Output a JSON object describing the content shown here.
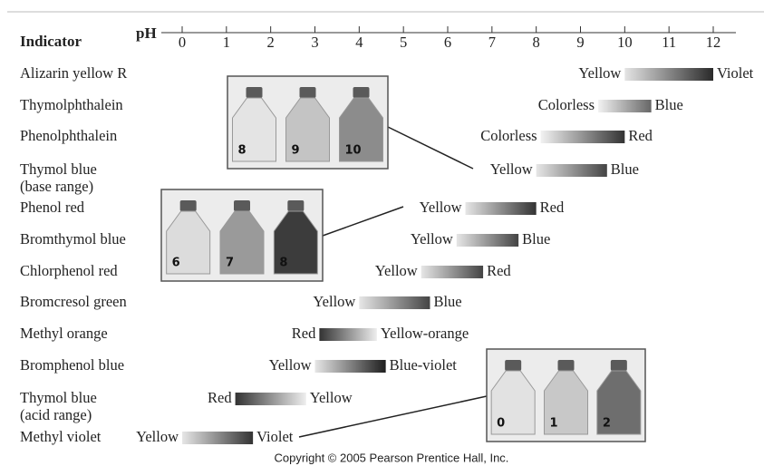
{
  "header": {
    "title": "Indicator",
    "axis_label": "pH"
  },
  "axis": {
    "lim": [
      0,
      12
    ],
    "ticks": [
      0,
      1,
      2,
      3,
      4,
      5,
      6,
      7,
      8,
      9,
      10,
      11,
      12
    ]
  },
  "indicators": [
    {
      "name": [
        "Alizarin yellow R"
      ],
      "range": [
        10.0,
        12.0
      ],
      "low": "Yellow",
      "high": "Violet",
      "colors": [
        "#e4e4e4",
        "#2a2a2a"
      ]
    },
    {
      "name": [
        "Thymolphthalein"
      ],
      "range": [
        9.4,
        10.6
      ],
      "low": "Colorless",
      "high": "Blue",
      "colors": [
        "#f2f2f2",
        "#666666"
      ]
    },
    {
      "name": [
        "Phenolphthalein"
      ],
      "range": [
        8.1,
        10.0
      ],
      "low": "Colorless",
      "high": "Red",
      "colors": [
        "#f2f2f2",
        "#333333"
      ]
    },
    {
      "name": [
        "Thymol blue",
        "(base range)"
      ],
      "range": [
        8.0,
        9.6
      ],
      "low": "Yellow",
      "high": "Blue",
      "colors": [
        "#e6e6e6",
        "#444444"
      ]
    },
    {
      "name": [
        "Phenol red"
      ],
      "range": [
        6.4,
        8.0
      ],
      "low": "Yellow",
      "high": "Red",
      "colors": [
        "#e6e6e6",
        "#333333"
      ]
    },
    {
      "name": [
        "Bromthymol blue"
      ],
      "range": [
        6.2,
        7.6
      ],
      "low": "Yellow",
      "high": "Blue",
      "colors": [
        "#e6e6e6",
        "#444444"
      ]
    },
    {
      "name": [
        "Chlorphenol red"
      ],
      "range": [
        5.4,
        6.8
      ],
      "low": "Yellow",
      "high": "Red",
      "colors": [
        "#e6e6e6",
        "#444444"
      ]
    },
    {
      "name": [
        "Bromcresol green"
      ],
      "range": [
        4.0,
        5.6
      ],
      "low": "Yellow",
      "high": "Blue",
      "colors": [
        "#e6e6e6",
        "#444444"
      ]
    },
    {
      "name": [
        "Methyl orange"
      ],
      "range": [
        3.1,
        4.4
      ],
      "low": "Red",
      "high": "Yellow-orange",
      "colors": [
        "#333333",
        "#eeeeee"
      ]
    },
    {
      "name": [
        "Bromphenol blue"
      ],
      "range": [
        3.0,
        4.6
      ],
      "low": "Yellow",
      "high": "Blue-violet",
      "colors": [
        "#e6e6e6",
        "#1e1e1e"
      ]
    },
    {
      "name": [
        "Thymol blue",
        "(acid range)"
      ],
      "range": [
        1.2,
        2.8
      ],
      "low": "Red",
      "high": "Yellow",
      "colors": [
        "#333333",
        "#eeeeee"
      ]
    },
    {
      "name": [
        "Methyl violet"
      ],
      "range": [
        0.0,
        1.6
      ],
      "low": "Yellow",
      "high": "Violet",
      "colors": [
        "#e6e6e6",
        "#333333"
      ]
    }
  ],
  "photos": [
    {
      "labels": [
        "8",
        "9",
        "10"
      ]
    },
    {
      "labels": [
        "6",
        "7",
        "8"
      ]
    },
    {
      "labels": [
        "0",
        "1",
        "2"
      ]
    }
  ],
  "footer": "Copyright © 2005 Pearson Prentice Hall, Inc."
}
